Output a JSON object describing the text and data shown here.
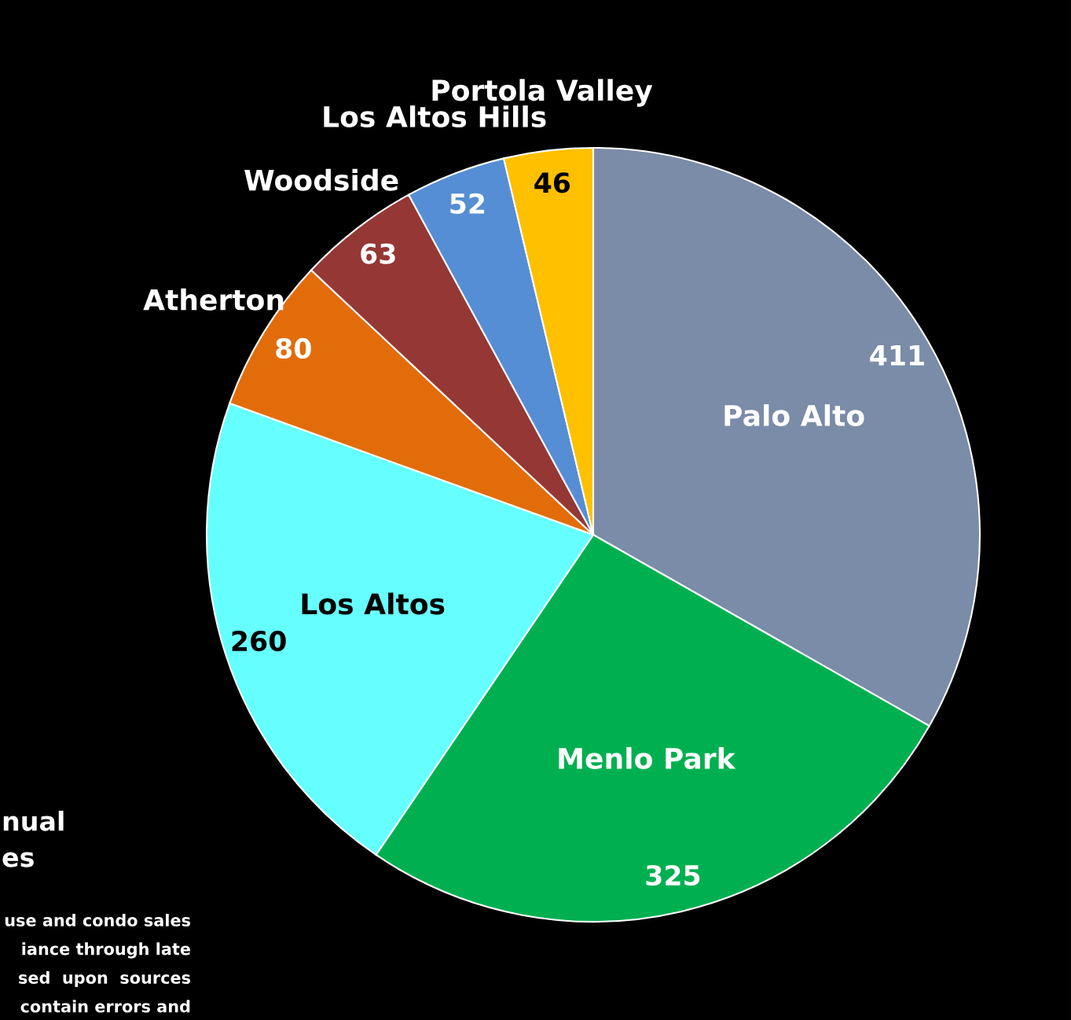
{
  "chart_data": {
    "type": "pie",
    "categories": [
      "Palo Alto",
      "Menlo Park",
      "Los Altos",
      "Atherton",
      "Woodside",
      "Los Altos Hills",
      "Portola Valley"
    ],
    "values": [
      411,
      325,
      260,
      80,
      63,
      52,
      46
    ],
    "colors": [
      "#7a8ca8",
      "#00b050",
      "#66ffff",
      "#e36c0a",
      "#953735",
      "#558ed5",
      "#ffc000"
    ],
    "data_labels": true,
    "legend": false,
    "annotations": [
      "nual",
      "es",
      "use and condo sales",
      "iance through late",
      "sed  upon  sources",
      "contain errors and"
    ]
  }
}
